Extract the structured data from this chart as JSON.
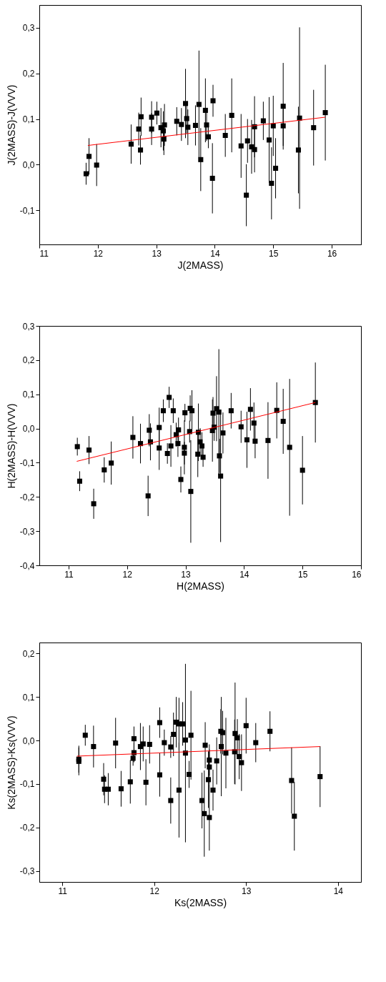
{
  "chart_data": [
    {
      "type": "scatter",
      "xlabel": "J(2MASS)",
      "ylabel": "J(2MASS)-J(VVV)",
      "xlim": [
        11,
        16.5
      ],
      "xticks": [
        11,
        12,
        13,
        14,
        15,
        16
      ],
      "ylim": [
        -0.175,
        0.35
      ],
      "yticks": [
        {
          "value": -0.1,
          "label": "-0,1"
        },
        {
          "value": 0,
          "label": "0,0"
        },
        {
          "value": 0.1,
          "label": "0,1"
        },
        {
          "value": 0.2,
          "label": "0,2"
        },
        {
          "value": 0.3,
          "label": "0,3"
        }
      ],
      "series": [
        {
          "marker": "square",
          "color": "#000000",
          "x": [
            11.8,
            11.85,
            11.98,
            12.57,
            12.7,
            12.73,
            12.74,
            12.92,
            12.92,
            13.01,
            13.08,
            13.12,
            13.14,
            13.13,
            13.35,
            13.43,
            13.5,
            13.52,
            13.54,
            13.67,
            13.73,
            13.76,
            13.84,
            13.86,
            13.89,
            13.97,
            13.96,
            14.18,
            14.29,
            14.45,
            14.56,
            14.54,
            14.63,
            14.68,
            14.68,
            14.83,
            14.93,
            14.97,
            15.0,
            15.04,
            15.17,
            15.17,
            15.43,
            15.45,
            15.69,
            15.89
          ],
          "values": [
            -0.02,
            0.018,
            -0.001,
            0.045,
            0.078,
            0.032,
            0.105,
            0.104,
            0.078,
            0.113,
            0.081,
            0.074,
            0.087,
            0.056,
            0.095,
            0.088,
            0.134,
            0.101,
            0.082,
            0.086,
            0.132,
            0.011,
            0.119,
            0.087,
            0.061,
            0.14,
            -0.03,
            0.064,
            0.108,
            0.041,
            0.052,
            -0.067,
            0.039,
            0.083,
            0.033,
            0.096,
            0.054,
            -0.041,
            0.085,
            -0.008,
            0.128,
            0.085,
            0.032,
            0.102,
            0.081,
            0.114
          ],
          "errors": [
            0.024,
            0.04,
            0.046,
            0.043,
            0.036,
            0.032,
            0.042,
            0.035,
            0.035,
            0.025,
            0.043,
            0.043,
            0.046,
            0.035,
            0.031,
            0.036,
            0.076,
            0.033,
            0.039,
            0.044,
            0.118,
            0.069,
            0.07,
            0.035,
            0.025,
            0.035,
            0.077,
            0.047,
            0.081,
            0.07,
            0.048,
            0.068,
            0.059,
            0.067,
            0.05,
            0.042,
            0.094,
            0.079,
            0.066,
            0.066,
            0.095,
            0.044,
            0.095,
            0.199,
            0.083,
            0.105
          ]
        },
        {
          "type": "line",
          "color": "#ff0000",
          "x": [
            11.83,
            15.89
          ],
          "values": [
            0.042,
            0.104
          ]
        }
      ]
    },
    {
      "type": "scatter",
      "xlabel": "H(2MASS)",
      "ylabel": "H(2MASS)-H(VVV)",
      "xlim": [
        10.5,
        16
      ],
      "xticks": [
        11,
        12,
        13,
        14,
        15,
        16
      ],
      "ylim": [
        -0.4,
        0.3
      ],
      "yticks": [
        {
          "value": -0.4,
          "label": "-0,4"
        },
        {
          "value": -0.3,
          "label": "-0,3"
        },
        {
          "value": -0.2,
          "label": "-0,2"
        },
        {
          "value": -0.1,
          "label": "-0,1"
        },
        {
          "value": 0,
          "label": "0,0"
        },
        {
          "value": 0.1,
          "label": "0,1"
        },
        {
          "value": 0.2,
          "label": "0,2"
        },
        {
          "value": 0.3,
          "label": "0,3"
        }
      ],
      "series": [
        {
          "marker": "square",
          "color": "#000000",
          "x": [
            11.15,
            11.19,
            11.35,
            11.43,
            11.61,
            11.73,
            12.1,
            12.23,
            12.38,
            12.4,
            12.36,
            12.55,
            12.55,
            12.62,
            12.72,
            12.79,
            12.69,
            12.75,
            12.84,
            12.88,
            12.87,
            12.92,
            12.99,
            12.98,
            12.98,
            13.08,
            13.11,
            13.07,
            13.09,
            13.22,
            13.21,
            13.25,
            13.28,
            13.3,
            13.47,
            13.53,
            13.57,
            13.49,
            13.46,
            13.64,
            13.58,
            13.6,
            13.78,
            13.95,
            14.05,
            14.11,
            14.17,
            14.19,
            14.41,
            14.56,
            14.67,
            14.78,
            15.0,
            15.22
          ],
          "values": [
            -0.053,
            -0.154,
            -0.063,
            -0.22,
            -0.121,
            -0.101,
            -0.026,
            -0.044,
            -0.005,
            -0.039,
            -0.197,
            0.003,
            -0.057,
            0.052,
            0.091,
            0.052,
            -0.073,
            -0.051,
            -0.018,
            -0.004,
            -0.044,
            -0.149,
            0.046,
            -0.055,
            -0.072,
            0.059,
            0.052,
            -0.009,
            -0.184,
            -0.011,
            -0.075,
            -0.039,
            -0.051,
            -0.084,
            0.045,
            0.058,
            0.048,
            0.004,
            -0.006,
            -0.013,
            -0.08,
            -0.139,
            0.052,
            0.005,
            -0.033,
            0.056,
            0.016,
            -0.037,
            -0.035,
            0.053,
            0.021,
            -0.055,
            -0.122,
            0.076
          ],
          "errors": [
            0.026,
            0.029,
            0.041,
            0.044,
            0.037,
            0.063,
            0.062,
            0.058,
            0.047,
            0.054,
            0.059,
            0.058,
            0.064,
            0.033,
            0.031,
            0.036,
            0.03,
            0.061,
            0.035,
            0.036,
            0.039,
            0.038,
            0.026,
            0.079,
            0.033,
            0.038,
            0.06,
            0.032,
            0.15,
            0.084,
            0.067,
            0.04,
            0.04,
            0.028,
            0.047,
            0.095,
            0.184,
            0.04,
            0.091,
            0.06,
            0.05,
            0.193,
            0.052,
            0.047,
            0.082,
            0.062,
            0.06,
            0.05,
            0.112,
            0.082,
            0.095,
            0.2,
            0.1,
            0.117
          ]
        },
        {
          "type": "line",
          "color": "#ff0000",
          "x": [
            11.14,
            15.22
          ],
          "values": [
            -0.096,
            0.076
          ]
        }
      ]
    },
    {
      "type": "scatter",
      "xlabel": "Ks(2MASS)",
      "ylabel": "Ks(2MASS)-Ks(VVV)",
      "xlim": [
        10.75,
        14.25
      ],
      "xticks": [
        11,
        12,
        13,
        14
      ],
      "ylim": [
        -0.325,
        0.225
      ],
      "yticks": [
        {
          "value": -0.3,
          "label": "-0,3"
        },
        {
          "value": -0.2,
          "label": "-0,2"
        },
        {
          "value": -0.1,
          "label": "-0,1"
        },
        {
          "value": 0,
          "label": "0,0"
        },
        {
          "value": 0.1,
          "label": "0,1"
        },
        {
          "value": 0.2,
          "label": "0,2"
        }
      ],
      "series": [
        {
          "marker": "square",
          "color": "#000000",
          "x": [
            11.18,
            11.18,
            11.25,
            11.34,
            11.58,
            11.45,
            11.46,
            11.5,
            11.64,
            11.74,
            11.78,
            11.78,
            11.77,
            11.85,
            11.88,
            11.91,
            11.95,
            12.06,
            12.06,
            12.11,
            12.18,
            12.18,
            12.21,
            12.24,
            12.27,
            12.31,
            12.27,
            12.34,
            12.34,
            12.4,
            12.38,
            12.52,
            12.545,
            12.555,
            12.6,
            12.6,
            12.6,
            12.59,
            12.64,
            12.68,
            12.725,
            12.745,
            12.73,
            12.78,
            12.875,
            12.88,
            12.905,
            12.925,
            12.95,
            13.0,
            13.105,
            13.26,
            13.495,
            13.525,
            13.805
          ],
          "values": [
            -0.043,
            -0.048,
            0.012,
            -0.014,
            -0.006,
            -0.089,
            -0.112,
            -0.112,
            -0.111,
            -0.095,
            0.004,
            -0.028,
            -0.041,
            -0.014,
            -0.008,
            -0.096,
            -0.009,
            0.041,
            -0.079,
            -0.005,
            -0.015,
            -0.138,
            0.014,
            0.042,
            0.038,
            0.038,
            -0.114,
            -0.029,
            0.001,
            0.012,
            -0.078,
            -0.138,
            -0.168,
            -0.011,
            -0.177,
            -0.045,
            -0.061,
            -0.09,
            -0.114,
            -0.047,
            0.021,
            0.018,
            -0.014,
            -0.029,
            -0.026,
            0.016,
            0.006,
            -0.037,
            -0.051,
            0.034,
            -0.005,
            0.021,
            -0.092,
            -0.174,
            -0.083
          ],
          "errors": [
            0.031,
            0.032,
            0.024,
            0.048,
            0.058,
            0.037,
            0.032,
            0.037,
            0.041,
            0.05,
            0.028,
            0.022,
            0.017,
            0.054,
            0.04,
            0.053,
            0.044,
            0.035,
            0.05,
            0.03,
            0.025,
            0.053,
            0.05,
            0.058,
            0.06,
            0.05,
            0.109,
            0.205,
            0.04,
            0.102,
            0.031,
            0.064,
            0.099,
            0.053,
            0.076,
            0.036,
            0.04,
            0.065,
            0.047,
            0.054,
            0.051,
            0.05,
            0.114,
            0.081,
            0.074,
            0.117,
            0.043,
            0.052,
            0.065,
            0.064,
            0.045,
            0.046,
            0.076,
            0.079,
            0.07
          ]
        },
        {
          "type": "line",
          "color": "#ff0000",
          "x": [
            11.16,
            13.805
          ],
          "values": [
            -0.036,
            -0.014
          ]
        }
      ]
    }
  ]
}
